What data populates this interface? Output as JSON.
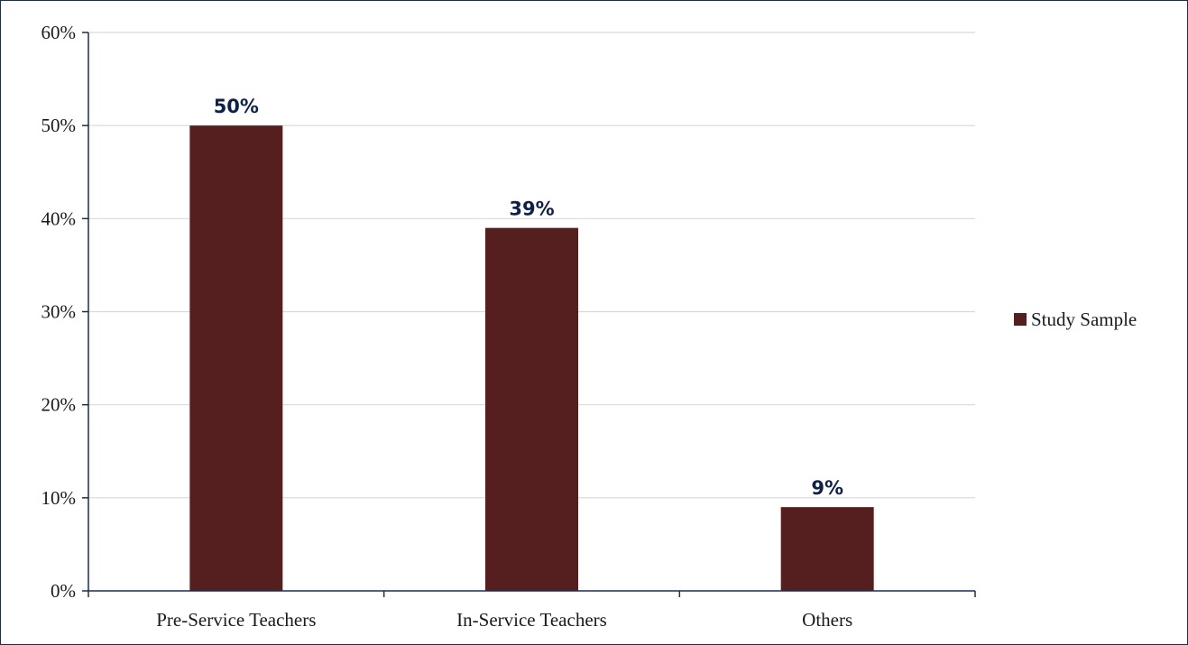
{
  "chart_data": {
    "type": "bar",
    "categories": [
      "Pre-Service Teachers",
      "In-Service Teachers",
      "Others"
    ],
    "series": [
      {
        "name": "Study Sample",
        "values": [
          50,
          39,
          9
        ],
        "data_labels": [
          "50%",
          "39%",
          "9%"
        ],
        "color": "#561f1f"
      }
    ],
    "title": "",
    "xlabel": "",
    "ylabel": "",
    "ylim": [
      0,
      60
    ],
    "y_ticks": [
      0,
      10,
      20,
      30,
      40,
      50,
      60
    ],
    "y_tick_labels": [
      "0%",
      "10%",
      "20%",
      "30%",
      "40%",
      "50%",
      "60%"
    ],
    "grid": true,
    "legend": "right"
  },
  "colors": {
    "bar": "#561f1f",
    "gridline": "#d9d9d9",
    "axis": "#1f2d4d",
    "data_label": "#0f2147"
  }
}
